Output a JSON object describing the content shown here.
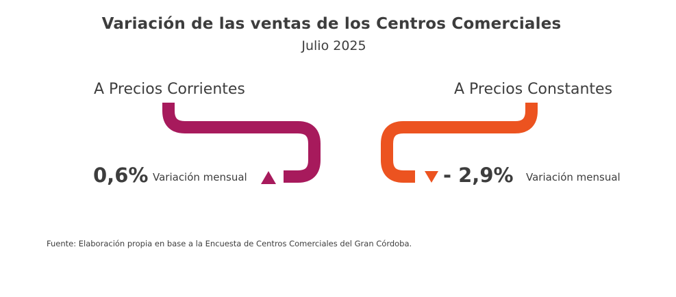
{
  "title": "Variación de las ventas de los Centros Comerciales",
  "subtitle": "Julio 2025",
  "current_prices": {
    "heading": "A Precios Corrientes",
    "value": "0,6%",
    "label": "Variación mensual",
    "direction": "up",
    "color": "#a71a5c",
    "icon": "triangle-up-icon"
  },
  "constant_prices": {
    "heading": "A Precios Constantes",
    "value": "- 2,9%",
    "label": "Variación mensual",
    "direction": "down",
    "color": "#ec5320",
    "icon": "triangle-down-icon"
  },
  "source": "Fuente: Elaboración propia en base a la Encuesta de Centros Comerciales del Gran Córdoba."
}
